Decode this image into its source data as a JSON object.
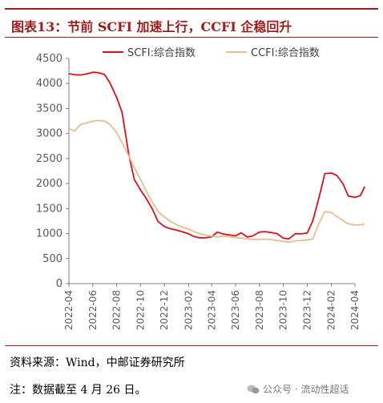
{
  "figure": {
    "title": "图表13：节前 SCFI 加速上行，CCFI 企稳回升"
  },
  "source": "资料来源：Wind，中邮证券研究所",
  "note": "注：数据截至 4 月 26 日。",
  "watermark": "公众号 · 流动性超话",
  "chart_data": {
    "type": "line",
    "title": "",
    "xlabel": "",
    "ylabel": "",
    "ylim": [
      0,
      4500
    ],
    "yticks": [
      0,
      500,
      1000,
      1500,
      2000,
      2500,
      3000,
      3500,
      4000,
      4500
    ],
    "xlim": [
      "2022-04",
      "2024-04"
    ],
    "xticks": [
      "2022-04",
      "2022-06",
      "2022-08",
      "2022-10",
      "2022-12",
      "2023-02",
      "2023-04",
      "2023-06",
      "2023-08",
      "2023-10",
      "2023-12",
      "2024-02",
      "2024-04"
    ],
    "grid": false,
    "legend_position": "top",
    "series": [
      {
        "name": "SCFI:综合指数",
        "color": "#d8101c",
        "points": [
          [
            "2022-04-01",
            4195
          ],
          [
            "2022-04-15",
            4175
          ],
          [
            "2022-05-01",
            4170
          ],
          [
            "2022-05-15",
            4190
          ],
          [
            "2022-06-01",
            4225
          ],
          [
            "2022-06-15",
            4218
          ],
          [
            "2022-07-01",
            4180
          ],
          [
            "2022-07-15",
            4010
          ],
          [
            "2022-08-01",
            3720
          ],
          [
            "2022-08-15",
            3420
          ],
          [
            "2022-09-01",
            2580
          ],
          [
            "2022-09-15",
            2080
          ],
          [
            "2022-10-01",
            1870
          ],
          [
            "2022-10-15",
            1710
          ],
          [
            "2022-11-01",
            1480
          ],
          [
            "2022-11-15",
            1240
          ],
          [
            "2022-12-01",
            1140
          ],
          [
            "2022-12-15",
            1100
          ],
          [
            "2023-01-01",
            1070
          ],
          [
            "2023-01-15",
            1040
          ],
          [
            "2023-02-01",
            995
          ],
          [
            "2023-02-15",
            940
          ],
          [
            "2023-03-01",
            915
          ],
          [
            "2023-03-15",
            915
          ],
          [
            "2023-04-01",
            935
          ],
          [
            "2023-04-15",
            1030
          ],
          [
            "2023-05-01",
            990
          ],
          [
            "2023-05-15",
            975
          ],
          [
            "2023-06-01",
            955
          ],
          [
            "2023-06-15",
            1015
          ],
          [
            "2023-07-01",
            930
          ],
          [
            "2023-07-15",
            955
          ],
          [
            "2023-08-01",
            1030
          ],
          [
            "2023-08-15",
            1040
          ],
          [
            "2023-09-01",
            1020
          ],
          [
            "2023-09-15",
            1000
          ],
          [
            "2023-10-01",
            910
          ],
          [
            "2023-10-15",
            895
          ],
          [
            "2023-11-01",
            1000
          ],
          [
            "2023-11-15",
            995
          ],
          [
            "2023-12-01",
            1010
          ],
          [
            "2023-12-15",
            1250
          ],
          [
            "2024-01-01",
            1750
          ],
          [
            "2024-01-15",
            2200
          ],
          [
            "2024-02-01",
            2210
          ],
          [
            "2024-02-15",
            2160
          ],
          [
            "2024-03-01",
            2000
          ],
          [
            "2024-03-15",
            1750
          ],
          [
            "2024-04-01",
            1725
          ],
          [
            "2024-04-15",
            1760
          ],
          [
            "2024-04-26",
            1940
          ]
        ]
      },
      {
        "name": "CCFI:综合指数",
        "color": "#e4be8e",
        "points": [
          [
            "2022-04-01",
            3100
          ],
          [
            "2022-04-15",
            3050
          ],
          [
            "2022-05-01",
            3180
          ],
          [
            "2022-05-15",
            3210
          ],
          [
            "2022-06-01",
            3250
          ],
          [
            "2022-06-15",
            3260
          ],
          [
            "2022-07-01",
            3250
          ],
          [
            "2022-07-15",
            3180
          ],
          [
            "2022-08-01",
            3020
          ],
          [
            "2022-08-15",
            2820
          ],
          [
            "2022-09-01",
            2550
          ],
          [
            "2022-09-15",
            2320
          ],
          [
            "2022-10-01",
            2080
          ],
          [
            "2022-10-15",
            1860
          ],
          [
            "2022-11-01",
            1620
          ],
          [
            "2022-11-15",
            1440
          ],
          [
            "2022-12-01",
            1330
          ],
          [
            "2022-12-15",
            1250
          ],
          [
            "2023-01-01",
            1180
          ],
          [
            "2023-01-15",
            1130
          ],
          [
            "2023-02-01",
            1090
          ],
          [
            "2023-02-15",
            1040
          ],
          [
            "2023-03-01",
            1000
          ],
          [
            "2023-03-15",
            975
          ],
          [
            "2023-04-01",
            950
          ],
          [
            "2023-04-15",
            930
          ],
          [
            "2023-05-01",
            950
          ],
          [
            "2023-05-15",
            940
          ],
          [
            "2023-06-01",
            920
          ],
          [
            "2023-06-15",
            910
          ],
          [
            "2023-07-01",
            895
          ],
          [
            "2023-07-15",
            885
          ],
          [
            "2023-08-01",
            880
          ],
          [
            "2023-08-15",
            890
          ],
          [
            "2023-09-01",
            880
          ],
          [
            "2023-09-15",
            860
          ],
          [
            "2023-10-01",
            845
          ],
          [
            "2023-10-15",
            830
          ],
          [
            "2023-11-01",
            855
          ],
          [
            "2023-11-15",
            860
          ],
          [
            "2023-12-01",
            875
          ],
          [
            "2023-12-15",
            890
          ],
          [
            "2024-01-01",
            1220
          ],
          [
            "2024-01-15",
            1440
          ],
          [
            "2024-02-01",
            1420
          ],
          [
            "2024-02-15",
            1340
          ],
          [
            "2024-03-01",
            1260
          ],
          [
            "2024-03-15",
            1195
          ],
          [
            "2024-04-01",
            1170
          ],
          [
            "2024-04-15",
            1175
          ],
          [
            "2024-04-26",
            1190
          ]
        ]
      }
    ]
  }
}
